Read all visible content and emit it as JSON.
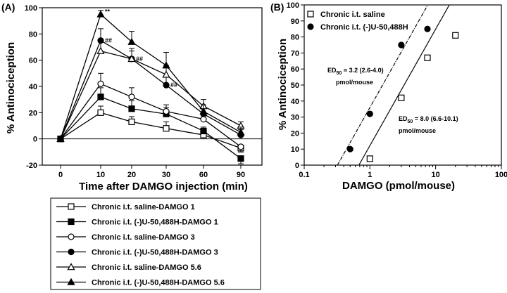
{
  "chart_data": [
    {
      "panel": "(A)",
      "type": "line",
      "x": [
        0,
        10,
        20,
        30,
        60,
        90
      ],
      "xtick_labels": [
        "0",
        "10",
        "20",
        "30",
        "60",
        "90"
      ],
      "xlabel": "Time after DAMGO injection (min)",
      "ylabel": "% Antinociception",
      "ylim": [
        -20,
        100
      ],
      "yticks": [
        -20,
        0,
        20,
        40,
        60,
        80,
        100
      ],
      "series": [
        {
          "name": "Chronic i.t. saline-DAMGO 1",
          "marker": "open-square",
          "values": [
            0,
            20,
            13,
            8,
            3,
            -7
          ],
          "errors": [
            0,
            5,
            4,
            5,
            3,
            3
          ]
        },
        {
          "name": "Chronic i.t. (-)U-50,488H-DAMGO 1",
          "marker": "filled-square",
          "values": [
            0,
            32,
            23,
            19,
            6,
            -15
          ],
          "errors": [
            0,
            7,
            6,
            5,
            3,
            4
          ]
        },
        {
          "name": "Chronic i.t. saline-DAMGO 3",
          "marker": "open-circle",
          "values": [
            0,
            42,
            32,
            21,
            15,
            -6
          ],
          "errors": [
            0,
            8,
            7,
            5,
            4,
            4
          ]
        },
        {
          "name": "Chronic i.t. (-)U-50,488H-DAMGO 3",
          "marker": "filled-circle",
          "values": [
            0,
            75,
            61,
            41,
            19,
            3
          ],
          "errors": [
            0,
            9,
            8,
            7,
            5,
            4
          ]
        },
        {
          "name": "Chronic i.t. saline-DAMGO 5.6",
          "marker": "open-triangle",
          "values": [
            0,
            67,
            61,
            49,
            25,
            10
          ],
          "errors": [
            0,
            8,
            6,
            7,
            5,
            3
          ]
        },
        {
          "name": "Chronic i.t. (-)U-50,488H-DAMGO 5.6",
          "marker": "filled-triangle",
          "values": [
            0,
            95,
            74,
            56,
            21,
            5
          ],
          "errors": [
            0,
            3,
            8,
            10,
            5,
            4
          ]
        }
      ],
      "annotations": [
        {
          "text": "**",
          "x": 10,
          "y": 97
        },
        {
          "text": "##",
          "x": 10,
          "y": 75
        },
        {
          "text": "##",
          "x": 20,
          "y": 61
        },
        {
          "text": "##",
          "x": 30,
          "y": 41
        }
      ]
    },
    {
      "panel": "(B)",
      "type": "scatter",
      "xscale": "log",
      "xlim": [
        0.1,
        100
      ],
      "xtick_labels": [
        "0.1",
        "1",
        "10",
        "100"
      ],
      "ylim": [
        0,
        100
      ],
      "yticks": [
        0,
        10,
        20,
        30,
        40,
        50,
        60,
        70,
        80,
        90,
        100
      ],
      "xlabel": "DAMGO (pmol/mouse)",
      "ylabel": "% Antinociception",
      "series": [
        {
          "name": "Chronic i.t. saline",
          "marker": "open-square",
          "x": [
            1,
            3,
            7.5,
            20
          ],
          "y": [
            4,
            42,
            67,
            81
          ],
          "fit": {
            "x0": 0.68,
            "slope": 72.7
          }
        },
        {
          "name": "Chronic i.t. (-)U-50,488H",
          "marker": "filled-circle",
          "x": [
            0.5,
            1,
            3,
            7.5
          ],
          "y": [
            10,
            32,
            75,
            85
          ],
          "fit": {
            "x0": 0.32,
            "slope": 72.7
          }
        }
      ],
      "annotations": [
        {
          "text": "ED",
          "sub": "50",
          "rest": " = 3.2 (2.6-4.0)",
          "line2": "pmol/mouse"
        },
        {
          "text": "ED",
          "sub": "50",
          "rest": " = 8.0 (6.6-10.1)",
          "line2": "pmol/mouse"
        }
      ]
    }
  ]
}
